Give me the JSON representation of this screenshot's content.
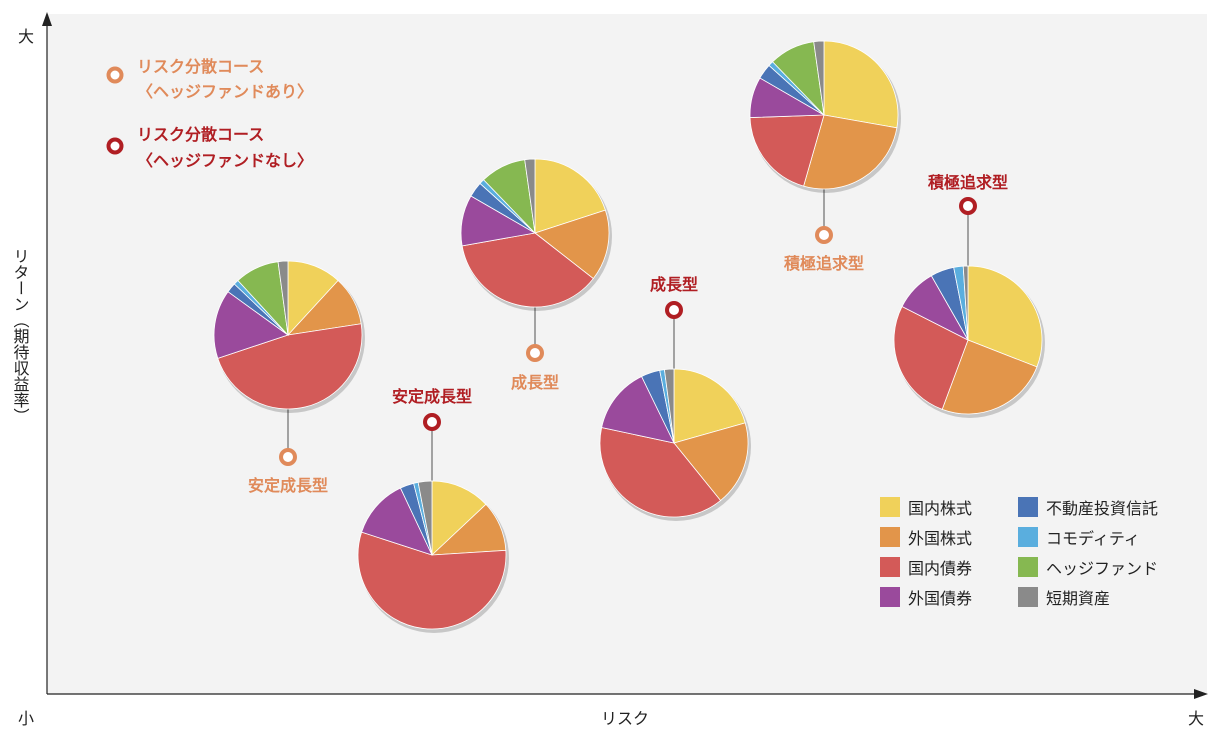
{
  "chart_data": {
    "type": "pie-scatter",
    "xlabel": "リスク",
    "ylabel": "リターン（期待収益率）",
    "x_min_label": "小",
    "x_max_label": "大",
    "y_max_label": "大",
    "legend_courses": [
      {
        "line1": "リスク分散コース",
        "line2": "〈ヘッジファンドあり〉",
        "color": "#e08a5a"
      },
      {
        "line1": "リスク分散コース",
        "line2": "〈ヘッジファンドなし〉",
        "color": "#b01e23"
      }
    ],
    "asset_classes": [
      {
        "name": "国内株式",
        "color": "#f0d15a"
      },
      {
        "name": "外国株式",
        "color": "#e2954a"
      },
      {
        "name": "国内債券",
        "color": "#d35a58"
      },
      {
        "name": "外国債券",
        "color": "#9a4a9c"
      },
      {
        "name": "不動産投資信託",
        "color": "#4a74b6"
      },
      {
        "name": "コモディティ",
        "color": "#5aaede"
      },
      {
        "name": "ヘッジファンド",
        "color": "#86b851"
      },
      {
        "name": "短期資産",
        "color": "#8a8a8a"
      }
    ],
    "portfolios": [
      {
        "name": "安定成長型",
        "course": "ヘッジファンドあり",
        "values": [
          11,
          10,
          44,
          14,
          2,
          1,
          9,
          2
        ]
      },
      {
        "name": "成長型",
        "course": "ヘッジファンドあり",
        "values": [
          18,
          14,
          33,
          10,
          3,
          1,
          9,
          2
        ]
      },
      {
        "name": "積極追求型",
        "course": "ヘッジファンドあり",
        "values": [
          25,
          24,
          18,
          8,
          3,
          1,
          9,
          2
        ]
      },
      {
        "name": "安定成長型",
        "course": "ヘッジファンドなし",
        "values": [
          13,
          11,
          56,
          13,
          3,
          1,
          0,
          3
        ]
      },
      {
        "name": "成長型",
        "course": "ヘッジファンドなし",
        "values": [
          20,
          18,
          38,
          14,
          4,
          1,
          0,
          2
        ]
      },
      {
        "name": "積極追求型",
        "course": "ヘッジファンドなし",
        "values": [
          30,
          24,
          26,
          9,
          5,
          2,
          0,
          1
        ]
      }
    ]
  }
}
